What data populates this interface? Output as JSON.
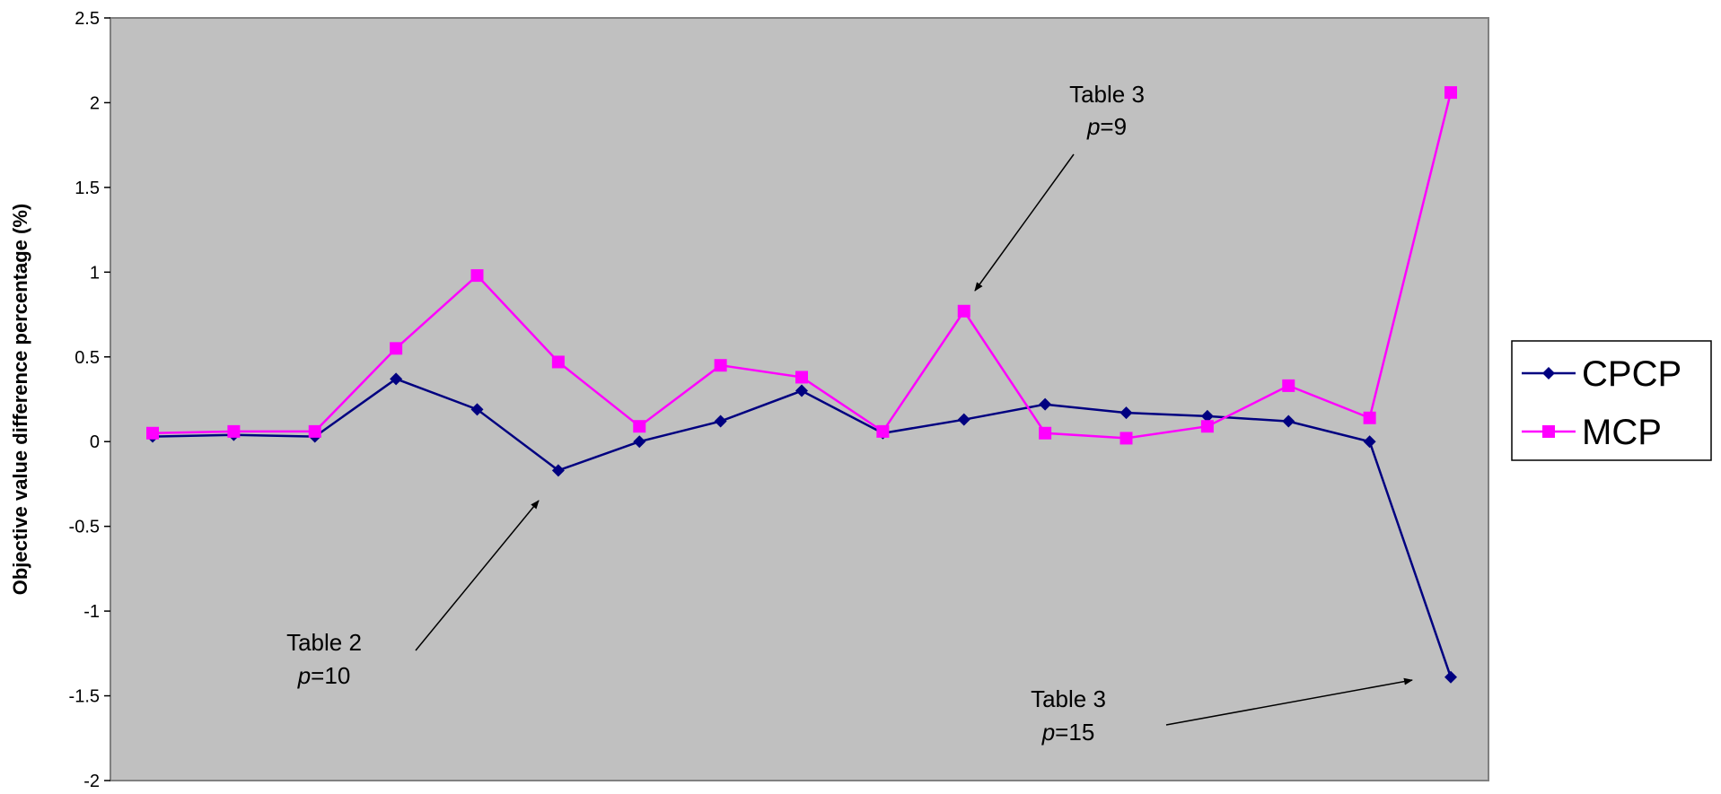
{
  "chart_data": {
    "type": "line",
    "ylabel": "Objective value difference percentage (%)",
    "ylim": [
      -2,
      2.5
    ],
    "yticks": [
      "2.5",
      "2",
      "1.5",
      "1",
      "0.5",
      "0",
      "-0.5",
      "-1",
      "-1.5",
      "-2"
    ],
    "grid": false,
    "legend_position": "right",
    "x": [
      1,
      2,
      3,
      4,
      5,
      6,
      7,
      8,
      9,
      10,
      11,
      12,
      13,
      14,
      15,
      16,
      17
    ],
    "series": [
      {
        "name": "CPCP",
        "color": "#000080",
        "marker": "diamond",
        "values": [
          0.03,
          0.04,
          0.03,
          0.37,
          0.19,
          -0.17,
          0.0,
          0.12,
          0.3,
          0.05,
          0.13,
          0.22,
          0.17,
          0.15,
          0.12,
          0.0,
          -1.39
        ]
      },
      {
        "name": "MCP",
        "color": "#FF00FF",
        "marker": "square",
        "values": [
          0.05,
          0.06,
          0.06,
          0.55,
          0.98,
          0.47,
          0.09,
          0.45,
          0.38,
          0.06,
          0.77,
          0.05,
          0.02,
          0.09,
          0.33,
          0.14,
          2.06
        ]
      }
    ],
    "annotations": [
      {
        "line1": "Table 3",
        "line2_italic": "p",
        "line2_rest": "=9"
      },
      {
        "line1": "Table 2",
        "line2_italic": "p",
        "line2_rest": "=10"
      },
      {
        "line1": "Table 3",
        "line2_italic": "p",
        "line2_rest": "=15"
      }
    ],
    "colors": {
      "plot_background": "#C0C0C0",
      "plot_border": "#808080"
    }
  }
}
